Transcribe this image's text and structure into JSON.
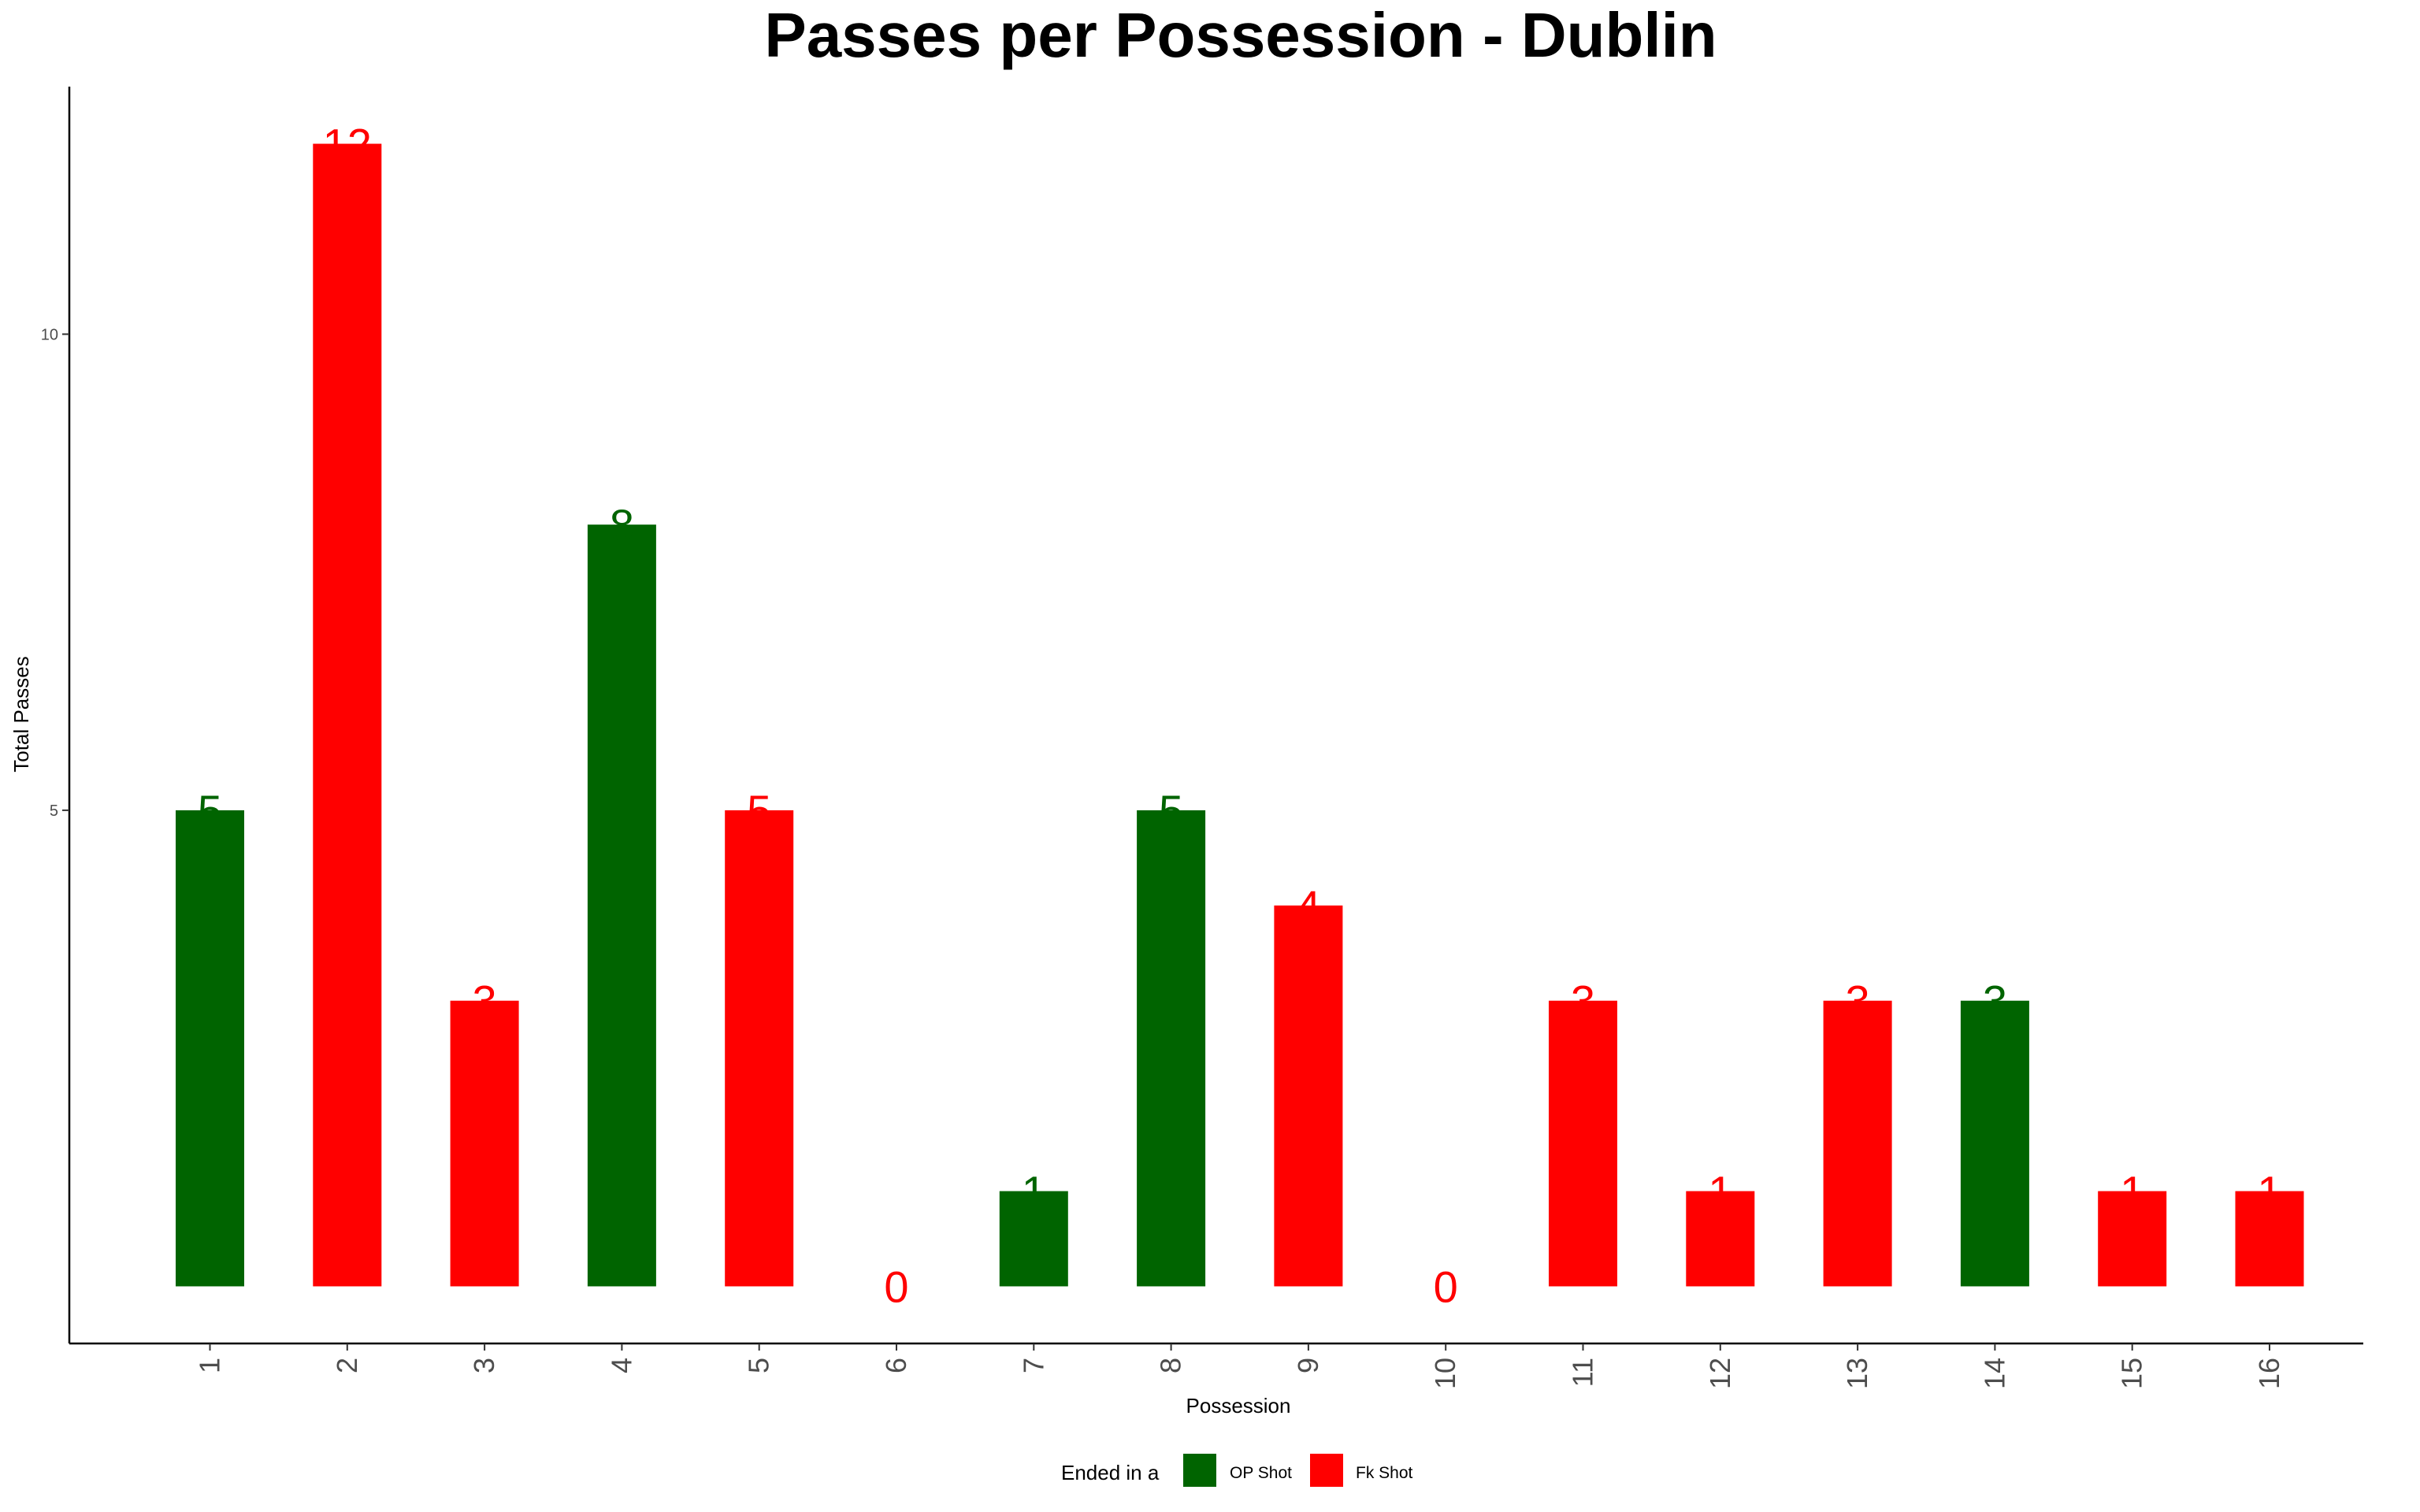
{
  "chart_data": {
    "type": "bar",
    "title": "Passes per Possession - Dublin",
    "xlabel": "Possession",
    "ylabel": "Total Passes",
    "categories": [
      "1",
      "2",
      "3",
      "4",
      "5",
      "6",
      "7",
      "8",
      "9",
      "10",
      "11",
      "12",
      "13",
      "14",
      "15",
      "16"
    ],
    "values": [
      5,
      12,
      3,
      8,
      5,
      0,
      1,
      5,
      4,
      0,
      3,
      1,
      3,
      3,
      1,
      1
    ],
    "ended_in": [
      "OP Shot",
      "Fk Shot",
      "Fk Shot",
      "OP Shot",
      "Fk Shot",
      "Fk Shot",
      "OP Shot",
      "OP Shot",
      "Fk Shot",
      "Fk Shot",
      "Fk Shot",
      "Fk Shot",
      "Fk Shot",
      "OP Shot",
      "Fk Shot",
      "Fk Shot"
    ],
    "y_ticks": [
      5,
      10
    ],
    "ylim": [
      -0.6,
      12.6
    ],
    "grid": false,
    "legend": {
      "title": "Ended in a",
      "position": "bottom",
      "entries": [
        {
          "name": "OP Shot",
          "color": "#006400"
        },
        {
          "name": "Fk Shot",
          "color": "#FF0000"
        }
      ]
    }
  }
}
